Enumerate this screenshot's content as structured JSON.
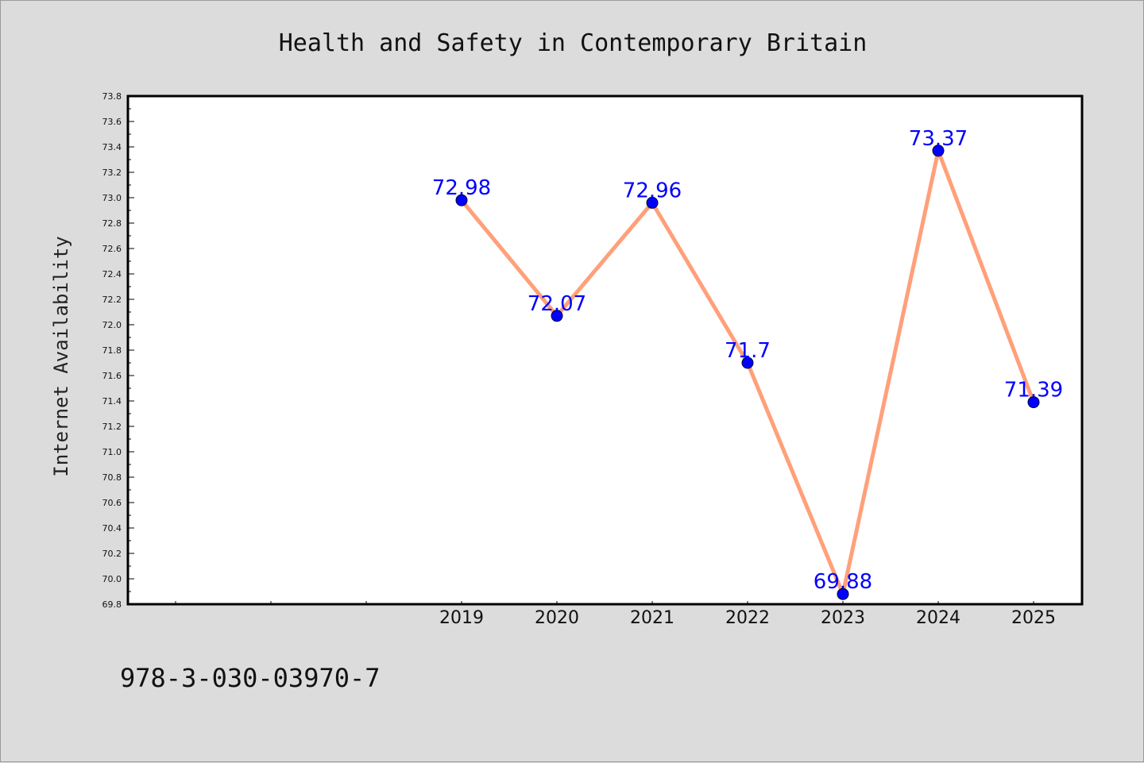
{
  "chart_data": {
    "type": "line",
    "title": "Health and Safety in Contemporary Britain",
    "xlabel": "",
    "ylabel": "Internet Availability",
    "categories": [
      "2019",
      "2020",
      "2021",
      "2022",
      "2023",
      "2024",
      "2025"
    ],
    "series": [
      {
        "values": [
          72.98,
          72.07,
          72.96,
          71.7,
          69.88,
          73.37,
          71.39
        ],
        "labels": [
          "72.98",
          "72.07",
          "72.96",
          "71.7",
          "69.88",
          "73.37",
          "71.39"
        ],
        "line_color": "#ffa07a",
        "marker_color": "#0000ff"
      }
    ],
    "ylim": [
      69.8,
      73.8
    ],
    "yticks": [
      "69.8",
      "70.0",
      "70.2",
      "70.4",
      "70.6",
      "70.8",
      "71.0",
      "71.2",
      "71.4",
      "71.6",
      "71.8",
      "72.0",
      "72.2",
      "72.4",
      "72.6",
      "72.8",
      "73.0",
      "73.2",
      "73.4",
      "73.6",
      "73.8"
    ],
    "x_slots": 10,
    "first_category_slot": 3,
    "grid": false,
    "legend": "none",
    "data_label_color": "#0000ff"
  },
  "footer": {
    "text": "978-3-030-03970-7"
  }
}
